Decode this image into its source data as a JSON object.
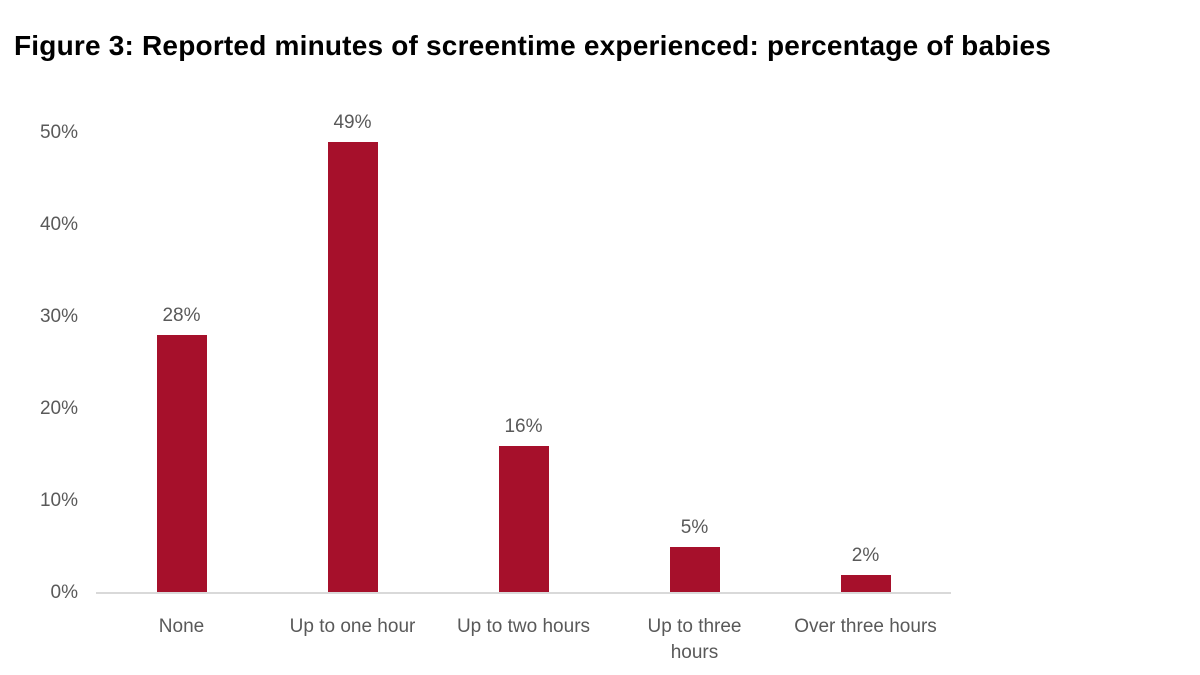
{
  "title": "Figure 3: Reported minutes of screentime experienced: percentage of babies",
  "chart_data": {
    "type": "bar",
    "title": "Figure 3: Reported minutes of screentime experienced: percentage of babies",
    "categories": [
      "None",
      "Up to one hour",
      "Up to two hours",
      "Up to three hours",
      "Over three hours"
    ],
    "category_label_lines": [
      [
        "None"
      ],
      [
        "Up to one hour"
      ],
      [
        "Up to two hours"
      ],
      [
        "Up to three",
        "hours"
      ],
      [
        "Over three hours"
      ]
    ],
    "values": [
      28,
      49,
      16,
      5,
      2
    ],
    "value_labels": [
      "28%",
      "49%",
      "16%",
      "5%",
      "2%"
    ],
    "yticks": [
      {
        "value": 0,
        "label": "0%"
      },
      {
        "value": 10,
        "label": "10%"
      },
      {
        "value": 20,
        "label": "20%"
      },
      {
        "value": 30,
        "label": "30%"
      },
      {
        "value": 40,
        "label": "40%"
      },
      {
        "value": 50,
        "label": "50%"
      }
    ],
    "ylim": [
      0,
      50
    ],
    "xlabel": "",
    "ylabel": "",
    "grid": false,
    "legend": false,
    "colors": {
      "bar": "#A6102B",
      "axis_text": "#595959",
      "data_label_text": "#595959",
      "axis_line": "#D9D9D9",
      "title_text": "#000000",
      "background": "#FFFFFF"
    }
  }
}
